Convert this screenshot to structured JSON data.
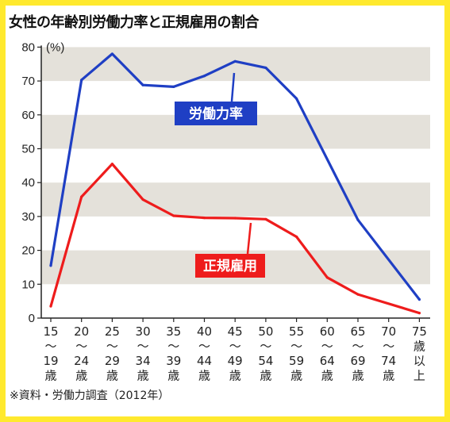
{
  "title": "女性の年齢別労働力率と正規雇用の割合",
  "source": "※資料・労働力調査（2012年）",
  "chart_data": {
    "type": "line",
    "categories": [
      [
        "15",
        "〜",
        "19",
        "歳"
      ],
      [
        "20",
        "〜",
        "24",
        "歳"
      ],
      [
        "25",
        "〜",
        "29",
        "歳"
      ],
      [
        "30",
        "〜",
        "34",
        "歳"
      ],
      [
        "35",
        "〜",
        "39",
        "歳"
      ],
      [
        "40",
        "〜",
        "44",
        "歳"
      ],
      [
        "45",
        "〜",
        "49",
        "歳"
      ],
      [
        "50",
        "〜",
        "54",
        "歳"
      ],
      [
        "55",
        "〜",
        "59",
        "歳"
      ],
      [
        "60",
        "〜",
        "64",
        "歳"
      ],
      [
        "65",
        "〜",
        "69",
        "歳"
      ],
      [
        "70",
        "〜",
        "74",
        "歳"
      ],
      [
        "75",
        "歳",
        "以",
        "上"
      ]
    ],
    "y_unit": "(%)",
    "ylim": [
      0,
      80
    ],
    "yticks": [
      0,
      10,
      20,
      30,
      40,
      50,
      60,
      70,
      80
    ],
    "grid": "horizontal gray bands",
    "series": [
      {
        "name": "労働力率",
        "color": "#1f3fc4",
        "label_bg": "#1f3fc4",
        "values": [
          15.5,
          70.3,
          78.0,
          68.8,
          68.3,
          71.5,
          75.8,
          73.9,
          64.8,
          null,
          29.0,
          null,
          5.5
        ]
      },
      {
        "name": "正規雇用",
        "color": "#ee1c1c",
        "label_bg": "#ee1c1c",
        "values": [
          3.5,
          35.8,
          45.5,
          35.0,
          30.2,
          29.6,
          29.5,
          29.2,
          24.0,
          12.0,
          7.0,
          null,
          1.5
        ]
      }
    ]
  }
}
